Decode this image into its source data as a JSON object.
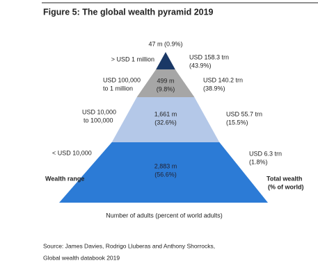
{
  "title": "Figure 5: The global wealth pyramid 2019",
  "levels": [
    {
      "range": [
        "> USD 1 million"
      ],
      "adults": "47 m (0.9%)",
      "wealth": [
        "USD 158.3 trn",
        "(43.9%)"
      ]
    },
    {
      "range": [
        "USD 100,000",
        "to 1 million"
      ],
      "adults": [
        "499 m",
        "(9.8%)"
      ],
      "wealth": [
        "USD 140.2 trn",
        "(38.9%)"
      ]
    },
    {
      "range": [
        "USD 10,000",
        "to 100,000"
      ],
      "adults": [
        "1,661 m",
        "(32.6%)"
      ],
      "wealth": [
        "USD 55.7 trn",
        "(15.5%)"
      ]
    },
    {
      "range": [
        "< USD 10,000"
      ],
      "adults": [
        "2,883 m",
        "(56.6%)"
      ],
      "wealth": [
        "USD 6.3 trn",
        "(1.8%)"
      ]
    }
  ],
  "left_heading": "Wealth range",
  "right_heading": [
    "Total wealth",
    "(% of world)"
  ],
  "x_label": "Number of adults (percent of world adults)",
  "source": [
    "Source: James Davies, Rodrigo Lluberas and Anthony Shorrocks,",
    "Global wealth databook 2019"
  ]
}
